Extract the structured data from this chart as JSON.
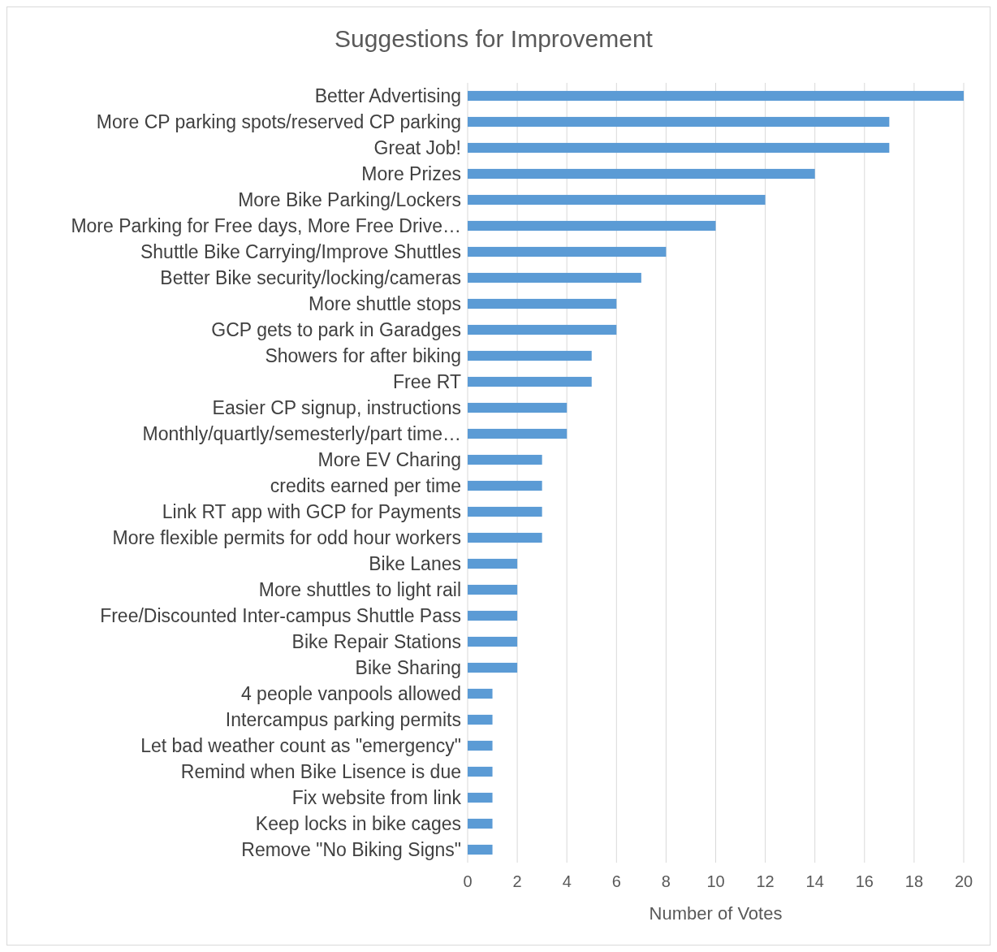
{
  "chart_data": {
    "type": "bar",
    "orientation": "horizontal",
    "title": "Suggestions for Improvement",
    "xlabel": "Number of Votes",
    "categories": [
      "Better Advertising",
      "More CP parking spots/reserved CP parking",
      "Great Job!",
      "More Prizes",
      "More Bike Parking/Lockers",
      "More Parking for Free days, More Free Drive…",
      "Shuttle Bike Carrying/Improve Shuttles",
      "Better Bike security/locking/cameras",
      "More shuttle stops",
      "GCP gets to park in Garadges",
      "Showers for after biking",
      "Free RT",
      "Easier CP signup, instructions",
      "Monthly/quartly/semesterly/part time…",
      "More EV Charing",
      "credits earned per time",
      "Link RT app with GCP for Payments",
      "More flexible permits for odd hour workers",
      "Bike Lanes",
      "More shuttles to light rail",
      "Free/Discounted Inter-campus Shuttle Pass",
      "Bike Repair Stations",
      "Bike Sharing",
      "4 people vanpools allowed",
      "Intercampus parking permits",
      "Let bad weather count as \"emergency\"",
      "Remind when Bike Lisence is due",
      "Fix website from link",
      "Keep locks in bike cages",
      "Remove \"No Biking Signs\""
    ],
    "values": [
      20,
      17,
      17,
      14,
      12,
      10,
      8,
      7,
      6,
      6,
      5,
      5,
      4,
      4,
      3,
      3,
      3,
      3,
      2,
      2,
      2,
      2,
      2,
      1,
      1,
      1,
      1,
      1,
      1,
      1
    ],
    "color": "#5b9bd5",
    "xlim": [
      0,
      20
    ],
    "xticks": [
      0,
      2,
      4,
      6,
      8,
      10,
      12,
      14,
      16,
      18,
      20
    ],
    "grid": "x"
  }
}
